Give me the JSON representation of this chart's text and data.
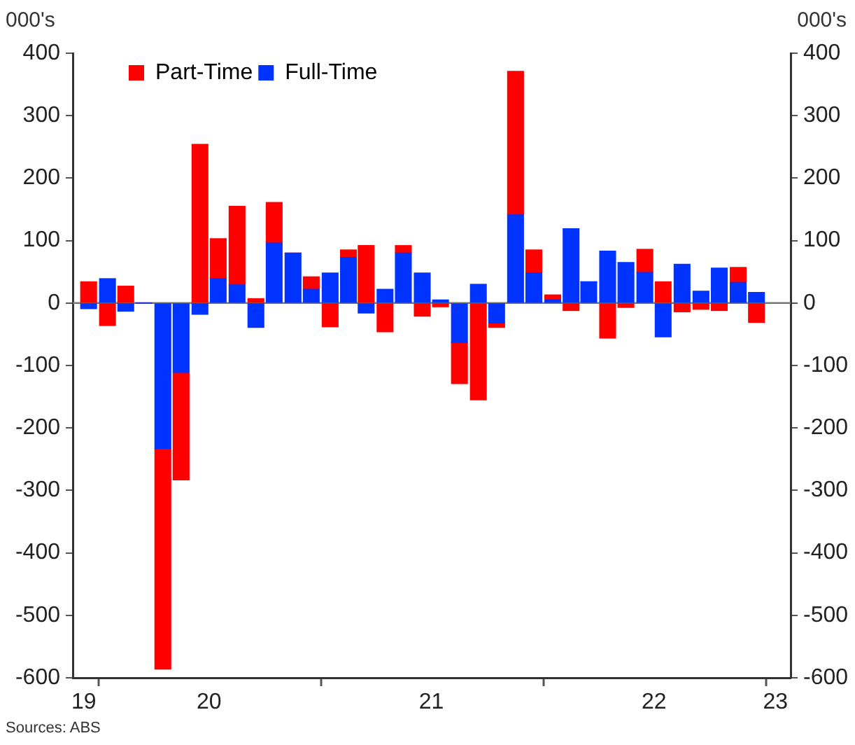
{
  "chart_data": {
    "type": "bar",
    "stacked": true,
    "ylabel": "000's",
    "y2label": "000's",
    "annotations": [
      "Sources: ABS"
    ],
    "x": [
      "2019-12-16",
      "2020-01-16",
      "2020-02-15",
      "2020-03-16",
      "2020-04-16",
      "2020-05-16",
      "2020-06-16",
      "2020-07-16",
      "2020-08-16",
      "2020-09-16",
      "2020-10-16",
      "2020-11-16",
      "2020-12-16",
      "2021-01-16",
      "2021-02-15",
      "2021-03-16",
      "2021-04-16",
      "2021-05-16",
      "2021-06-16",
      "2021-07-16",
      "2021-08-16",
      "2021-09-16",
      "2021-10-16",
      "2021-11-16",
      "2021-12-16",
      "2022-01-16",
      "2022-02-15",
      "2022-03-16",
      "2022-04-16",
      "2022-05-16",
      "2022-06-16",
      "2022-07-16",
      "2022-08-16",
      "2022-09-16",
      "2022-10-16",
      "2022-11-16",
      "2022-12-16"
    ],
    "ref_lines": [
      {
        "axis": "y",
        "value": 0,
        "color": "#777777"
      }
    ],
    "series": [
      {
        "name": "Full-Time",
        "color": "#0033ff",
        "values": [
          -9,
          39,
          -13,
          0,
          -233,
          -111,
          -18,
          39,
          29,
          -39,
          96,
          80,
          22,
          48,
          73,
          -16,
          22,
          80,
          48,
          5,
          -63,
          30,
          -32,
          141,
          48,
          5,
          119,
          34,
          83,
          65,
          49,
          -54,
          62,
          19,
          56,
          33,
          17
        ]
      },
      {
        "name": "Part-Time",
        "color": "#ff0000",
        "values": [
          34,
          -36,
          27,
          0,
          -353,
          -172,
          254,
          64,
          126,
          7,
          65,
          0,
          20,
          -38,
          12,
          92,
          -46,
          12,
          -21,
          -6,
          -66,
          -155,
          -7,
          230,
          37,
          8,
          -12,
          0,
          -56,
          -7,
          37,
          34,
          -14,
          -10,
          -12,
          24,
          -31
        ]
      }
    ],
    "xlim": [
      "2019-11-20",
      "2023-02-10"
    ],
    "xticks": [
      {
        "value": "2019-12-08",
        "label": "19"
      },
      {
        "value": "2020-01-01",
        "label": null
      },
      {
        "value": "2020-07-01",
        "label": "20"
      },
      {
        "value": "2021-01-01",
        "label": null
      },
      {
        "value": "2021-07-01",
        "label": "21"
      },
      {
        "value": "2022-01-01",
        "label": null
      },
      {
        "value": "2022-07-01",
        "label": "22"
      },
      {
        "value": "2023-01-01",
        "label": null
      },
      {
        "value": "2023-01-16",
        "label": "23"
      }
    ],
    "ylim": [
      -600,
      400
    ],
    "yticks": [
      -600,
      -500,
      -400,
      -300,
      -200,
      -100,
      0,
      100,
      200,
      300,
      400
    ],
    "y2lim": [
      -600,
      400
    ],
    "y2ticks": [
      -600,
      -500,
      -400,
      -300,
      -200,
      -100,
      0,
      100,
      200,
      300,
      400
    ],
    "grid": false,
    "legend": "top left"
  }
}
